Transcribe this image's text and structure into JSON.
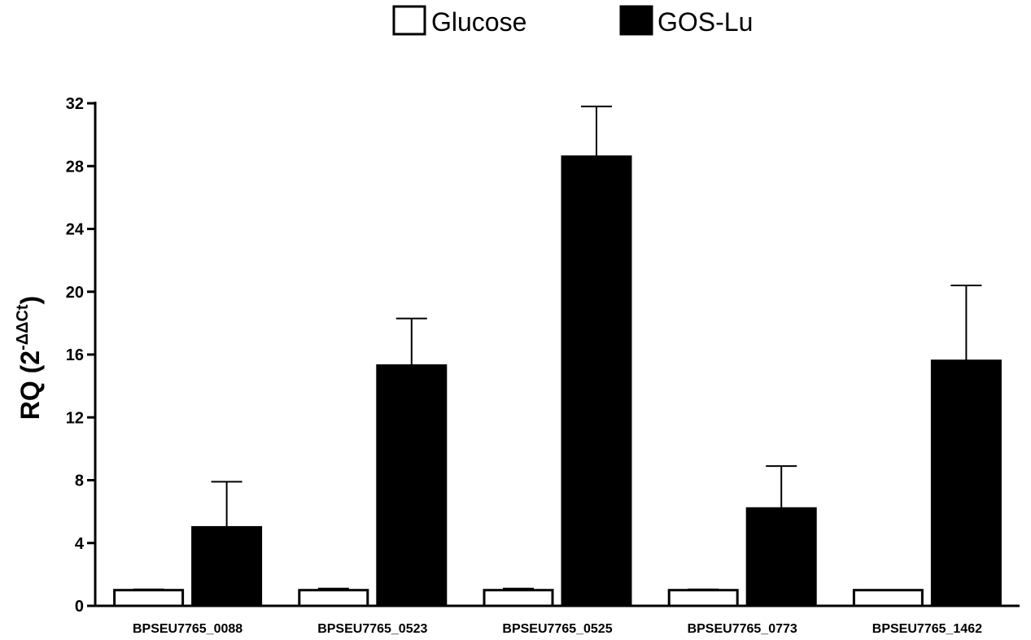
{
  "chart_data": {
    "type": "bar",
    "ylabel": "RQ (2",
    "ylabel_superscript": "-ΔΔCt",
    "ylabel_close": ")",
    "ylim": [
      0,
      32
    ],
    "yticks": [
      0,
      4,
      8,
      12,
      16,
      20,
      24,
      28,
      32
    ],
    "categories": [
      "BPSEU7765_0088",
      "BPSEU7765_0523",
      "BPSEU7765_0525",
      "BPSEU7765_0773",
      "BPSEU7765_1462"
    ],
    "series": [
      {
        "name": "Glucose",
        "fill": "#ffffff",
        "values": [
          1.0,
          1.0,
          1.0,
          1.0,
          1.0
        ],
        "errors": [
          0.05,
          0.1,
          0.1,
          0.05,
          0.0
        ]
      },
      {
        "name": "GOS-Lu",
        "fill": "#000000",
        "values": [
          5.0,
          15.3,
          28.6,
          6.2,
          15.6
        ],
        "errors": [
          2.9,
          3.0,
          3.2,
          2.7,
          4.8
        ]
      }
    ],
    "legend_position": "top-center",
    "grid": false
  }
}
